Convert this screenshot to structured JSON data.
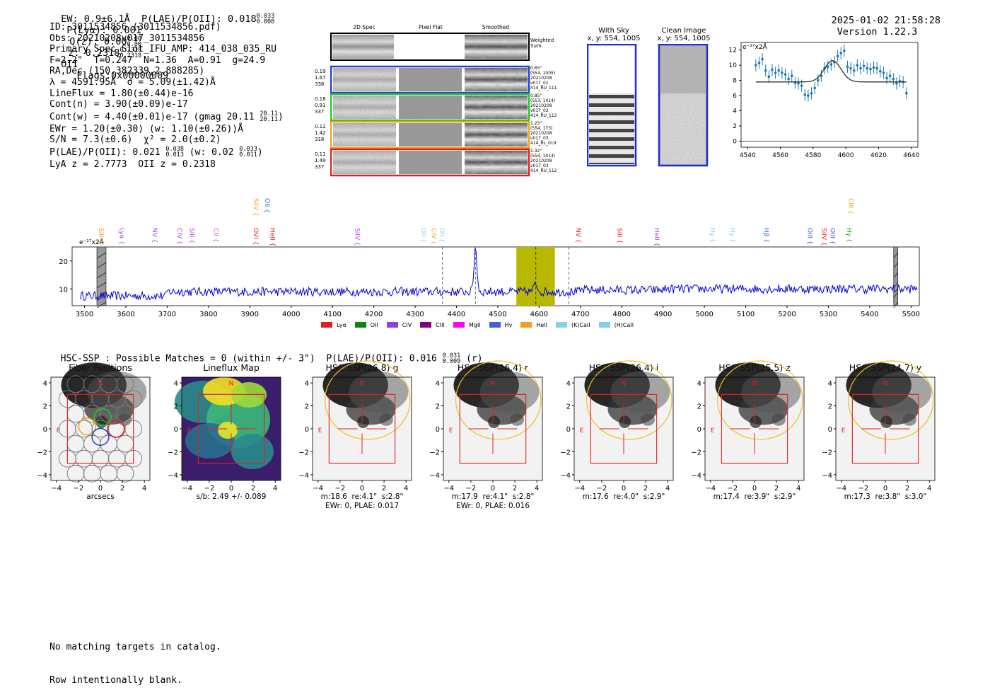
{
  "header": {
    "left": "EW: 0.9±6.1Å  P(LAE)/P(OII): 0.018",
    "left_sup": "0.033",
    "left_sub": "0.008",
    "plya": "P(Lyα): 0.001",
    "qz": "Q(z): 0.00",
    "qz_sup": "0.00",
    "qz_sub": "0.00",
    "z": "z: 0.2318",
    "z_sup": "0.2318",
    "z_sub": "0.2318",
    "line": "OII",
    "flags": "Flags:0x00000009",
    "datetime": "2025-01-02 21:58:28",
    "version": "Version 1.22.3"
  },
  "info": {
    "id": "ID: 3011534856 (3011534856.pdf)",
    "obs": "Obs: 20210208v017_3011534856",
    "slot": "Primary Spec_Slot_IFU_AMP: 414_038_035_RU",
    "params": "F=2.2\"  T=0.247  N=1.36  A=0.91  g=24.9",
    "radec": "RA,Dec (150.382339,2.888285)",
    "lambda": "λ = 4591.95Å  σ = 5.09(±1.42)Å",
    "lineflux": "LineFlux = 1.80(±0.44)e-16",
    "contn": "Cont(n) = 3.90(±0.09)e-17",
    "contw": "Cont(w) = 4.40(±0.01)e-17 (gmag 20.11",
    "contw_sup": "20.11",
    "contw_sub": "20.11",
    "contw_end": ")",
    "ewr": "EWr = 1.20(±0.30) (w: 1.10(±0.26))Å",
    "sn": "S/N = 7.3(±0.6)  χ² = 2.0(±0.2)",
    "plae": "P(LAE)/P(OII): 0.021",
    "plae_sup": "0.038",
    "plae_sub": "0.013",
    "plae_w": "(w: 0.02",
    "plae_w_sup": "0.033",
    "plae_w_sub": "0.011",
    "plae_end": ")",
    "lya": "LyA z = 2.7773  OII z = 0.2318"
  },
  "cutouts": {
    "col_labels": [
      "2D Spec",
      "Pixel Flat",
      "Smoothed"
    ],
    "weighted_label": "Weighted Sum",
    "rows": [
      {
        "left": [
          "0.19",
          "1.67",
          "338"
        ],
        "right": [
          "0.65\"",
          "(554, 1005)",
          "20210208",
          "v017_01",
          "414_RU_111"
        ],
        "color": "#1f3fd9"
      },
      {
        "left": [
          "0.18",
          "0.91",
          "337"
        ],
        "right": [
          "0.85\"",
          "(553, 1014)",
          "20210208",
          "v017_02",
          "414_RU_112"
        ],
        "color": "#22c922"
      },
      {
        "left": [
          "0.12",
          "1.42",
          "318"
        ],
        "right": [
          "1.23\"",
          "(554, 173)",
          "20210208",
          "v017_03",
          "414_RL_019"
        ],
        "color": "#f0a020"
      },
      {
        "left": [
          "0.11",
          "1.49",
          "337"
        ],
        "right": [
          "1.32\"",
          "(554, 1014)",
          "20210208",
          "v017_03",
          "414_RU_112"
        ],
        "color": "#e02020"
      }
    ]
  },
  "sky": {
    "with_title": "With Sky",
    "with_coords": "x, y: 554, 1005",
    "clean_title": "Clean Image",
    "clean_coords": "x, y: 554, 1005"
  },
  "zoom_fit": {
    "unit_label": "e⁻¹⁷x2Å",
    "xlim": [
      4536,
      4644
    ],
    "ylim": [
      -0.8,
      13
    ],
    "xticks": [
      4540,
      4560,
      4580,
      4600,
      4620,
      4640
    ],
    "yticks": [
      0,
      2,
      4,
      6,
      8,
      10,
      12
    ],
    "points_x": [
      4545,
      4547,
      4549,
      4551,
      4553,
      4555,
      4557,
      4559,
      4561,
      4563,
      4565,
      4567,
      4569,
      4571,
      4573,
      4575,
      4577,
      4579,
      4581,
      4583,
      4585,
      4587,
      4589,
      4591,
      4593,
      4595,
      4597,
      4599,
      4601,
      4603,
      4605,
      4607,
      4609,
      4611,
      4613,
      4615,
      4617,
      4619,
      4621,
      4623,
      4625,
      4627,
      4629,
      4631,
      4633,
      4635,
      4637
    ],
    "points_y": [
      10.0,
      10.3,
      10.8,
      9.3,
      8.5,
      9.4,
      9.0,
      9.3,
      9.0,
      8.8,
      8.2,
      8.6,
      7.7,
      7.6,
      7.3,
      6.1,
      6.0,
      6.3,
      7.0,
      8.0,
      8.6,
      9.6,
      9.8,
      10.1,
      10.4,
      11.2,
      11.6,
      11.9,
      9.8,
      9.6,
      9.3,
      10.0,
      9.6,
      9.9,
      9.6,
      9.5,
      9.7,
      9.6,
      9.2,
      9.0,
      8.3,
      8.6,
      8.2,
      7.6,
      7.9,
      7.8,
      6.3
    ],
    "points_err": [
      0.8,
      0.8,
      0.8,
      0.8,
      0.8,
      0.8,
      0.8,
      0.8,
      0.8,
      0.8,
      0.8,
      0.8,
      0.8,
      0.8,
      0.8,
      0.8,
      0.8,
      0.8,
      0.8,
      0.8,
      0.8,
      0.8,
      0.8,
      0.8,
      0.8,
      0.8,
      0.8,
      0.8,
      0.8,
      0.8,
      0.8,
      0.8,
      0.8,
      0.8,
      0.8,
      0.8,
      0.8,
      0.8,
      0.8,
      0.8,
      0.8,
      0.8,
      0.8,
      0.8,
      0.8,
      0.8,
      0.8
    ],
    "fit": {
      "continuum": 7.8,
      "amplitude": 2.8,
      "center": 4591.95,
      "sigma": 5.09,
      "xmin": 4545,
      "xmax": 4637
    }
  },
  "chart_data": {
    "type": "line",
    "unit_label": "e⁻¹⁷x2Å",
    "xlim": [
      3470,
      5520
    ],
    "ylim": [
      4,
      25
    ],
    "xticks": [
      3500,
      3600,
      3700,
      3800,
      3900,
      4000,
      4100,
      4200,
      4300,
      4400,
      4500,
      4600,
      4700,
      4800,
      4900,
      5000,
      5100,
      5200,
      5300,
      5400,
      5500
    ],
    "yticks": [
      10,
      20
    ],
    "continuum_level": 9,
    "emission_peak": {
      "x": 4446,
      "y": 25
    },
    "highlight_band": [
      4545,
      4638
    ],
    "marker_line": 4592,
    "dashed_lines": [
      4366,
      4446,
      4672
    ],
    "hatched_bands": [
      [
        3530,
        3552
      ],
      [
        5458,
        5468
      ]
    ],
    "line_labels": [
      {
        "name": "SiII",
        "x": 3530,
        "color": "#f0a020",
        "row": 1
      },
      {
        "name": "Lyα",
        "x": 3580,
        "color": "#b040e0",
        "row": 1
      },
      {
        "name": "NV",
        "x": 3660,
        "color": "#b040e0",
        "row": 1
      },
      {
        "name": "CIV",
        "x": 3720,
        "color": "#b040e0",
        "row": 1
      },
      {
        "name": "SiII",
        "x": 3750,
        "color": "#b040e0",
        "row": 1
      },
      {
        "name": "CII",
        "x": 3808,
        "color": "#d050d0",
        "row": 1
      },
      {
        "name": "SiIV",
        "x": 3905,
        "color": "#f0a020",
        "row": 0
      },
      {
        "name": "OII",
        "x": 3932,
        "color": "#3060e0",
        "row": 0
      },
      {
        "name": "OVI",
        "x": 3905,
        "color": "#e02020",
        "row": 1
      },
      {
        "name": "HeII",
        "x": 3945,
        "color": "#e02020",
        "row": 1
      },
      {
        "name": "SiIV",
        "x": 4150,
        "color": "#b040e0",
        "row": 1
      },
      {
        "name": "OII",
        "x": 4310,
        "color": "#87ceeb",
        "row": 1
      },
      {
        "name": "CIV",
        "x": 4335,
        "color": "#f0a020",
        "row": 1
      },
      {
        "name": "OII",
        "x": 4355,
        "color": "#87ceeb",
        "row": 1
      },
      {
        "name": "NV",
        "x": 4685,
        "color": "#e02020",
        "row": 1
      },
      {
        "name": "SiII",
        "x": 4785,
        "color": "#e02020",
        "row": 1
      },
      {
        "name": "HeII",
        "x": 4875,
        "color": "#b040e0",
        "row": 1
      },
      {
        "name": "Hγ",
        "x": 5010,
        "color": "#87ceeb",
        "row": 1
      },
      {
        "name": "Hγ",
        "x": 5058,
        "color": "#87ceeb",
        "row": 1
      },
      {
        "name": "Hβ",
        "x": 5140,
        "color": "#3060e0",
        "row": 1
      },
      {
        "name": "OIII",
        "x": 5245,
        "color": "#3060e0",
        "row": 1
      },
      {
        "name": "SiIV",
        "x": 5280,
        "color": "#e02020",
        "row": 1
      },
      {
        "name": "OIII",
        "x": 5300,
        "color": "#3060e0",
        "row": 1
      },
      {
        "name": "Hγ",
        "x": 5340,
        "color": "#22a022",
        "row": 1
      },
      {
        "name": "CIII",
        "x": 5345,
        "color": "#f0a020",
        "row": 0
      }
    ],
    "legend": [
      {
        "name": "Lyα",
        "color": "#e02020"
      },
      {
        "name": "OII",
        "color": "#108010"
      },
      {
        "name": "CIV",
        "color": "#9040e0"
      },
      {
        "name": "CIII",
        "color": "#800080"
      },
      {
        "name": "MgII",
        "color": "#ff00ff"
      },
      {
        "name": "Hγ",
        "color": "#4060e0"
      },
      {
        "name": "HeII",
        "color": "#f0a020"
      },
      {
        "name": "(K)CaII",
        "color": "#87ceeb"
      },
      {
        "name": "(H)CaII",
        "color": "#87ceeb"
      }
    ]
  },
  "hsc": {
    "header": "HSC-SSP : Possible Matches = 0 (within +/- 3\")  P(LAE)/P(OII): 0.016",
    "header_sup": "0.031",
    "header_sub": "0.009",
    "header_end": "(r)",
    "north": "N",
    "east": "E",
    "axis_ticks": [
      -4,
      -2,
      0,
      2,
      4
    ],
    "panels": [
      {
        "title": "Fiber Positions",
        "foot": [
          "arcsecs"
        ]
      },
      {
        "title": "Lineflux Map",
        "foot": [
          "s/b: 2.49 +/- 0.089"
        ]
      },
      {
        "title": "HSC SSP(26.8) g",
        "foot": [
          "m:18.6  re:4.1\"  s:2.8\"",
          "EWr: 0, PLAE: 0.017"
        ]
      },
      {
        "title": "HSC SSP(26.4) r",
        "foot": [
          "m:17.9  re:4.1\"  s:2.8\"",
          "EWr: 0, PLAE: 0.016"
        ]
      },
      {
        "title": "HSC SSP(26.4) i",
        "foot": [
          "m:17.6  re:4.0\"  s:2.9\""
        ]
      },
      {
        "title": "HSC SSP(25.5) z",
        "foot": [
          "m:17.4  re:3.9\"  s:2.9\""
        ]
      },
      {
        "title": "HSC SSP(24.7) y",
        "foot": [
          "m:17.3  re:3.8\"  s:3.0\""
        ]
      }
    ]
  },
  "footer": {
    "line1": "No matching targets in catalog.",
    "line2": "Row intentionally blank."
  }
}
